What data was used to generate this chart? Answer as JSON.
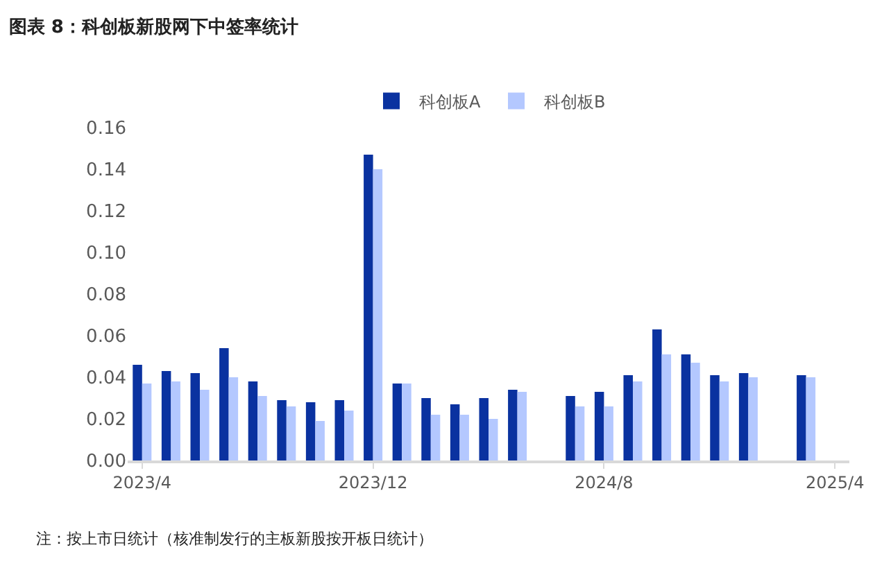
{
  "chart_data": {
    "type": "bar",
    "title": "图表 8：科创板新股网下中签率统计",
    "categories": [
      "2023/4",
      null,
      null,
      null,
      null,
      null,
      null,
      null,
      "2023/12",
      null,
      null,
      null,
      null,
      null,
      null,
      null,
      "2024/8",
      null,
      null,
      null,
      null,
      null,
      null,
      null,
      "2025/4"
    ],
    "series": [
      {
        "name": "科创板A",
        "color": "#0a32a0",
        "values": [
          0.046,
          0.043,
          0.042,
          0.054,
          0.038,
          0.029,
          0.028,
          0.029,
          0.147,
          0.037,
          0.03,
          0.027,
          0.03,
          0.034,
          null,
          0.031,
          0.033,
          0.041,
          0.063,
          0.051,
          0.041,
          0.042,
          null,
          0.041,
          null
        ]
      },
      {
        "name": "科创板B",
        "color": "#b4c8ff",
        "values": [
          0.037,
          0.038,
          0.034,
          0.04,
          0.031,
          0.026,
          0.019,
          0.024,
          0.14,
          0.037,
          0.022,
          0.022,
          0.02,
          0.033,
          null,
          0.026,
          0.026,
          0.038,
          0.051,
          0.047,
          0.038,
          0.04,
          null,
          0.04,
          null
        ]
      }
    ],
    "ylim": [
      0,
      0.16
    ],
    "yticks": [
      {
        "value": 0,
        "label": "0.00"
      },
      {
        "value": 0.02,
        "label": "0.02"
      },
      {
        "value": 0.04,
        "label": "0.04"
      },
      {
        "value": 0.06,
        "label": "0.06"
      },
      {
        "value": 0.08,
        "label": "0.08"
      },
      {
        "value": 0.1,
        "label": "0.10"
      },
      {
        "value": 0.12,
        "label": "0.12"
      },
      {
        "value": 0.14,
        "label": "0.14"
      },
      {
        "value": 0.16,
        "label": "0.16"
      }
    ],
    "legend": "top",
    "annotations": [
      "注：按上市日统计（核准制发行的主板新股按开板日统计）"
    ]
  }
}
